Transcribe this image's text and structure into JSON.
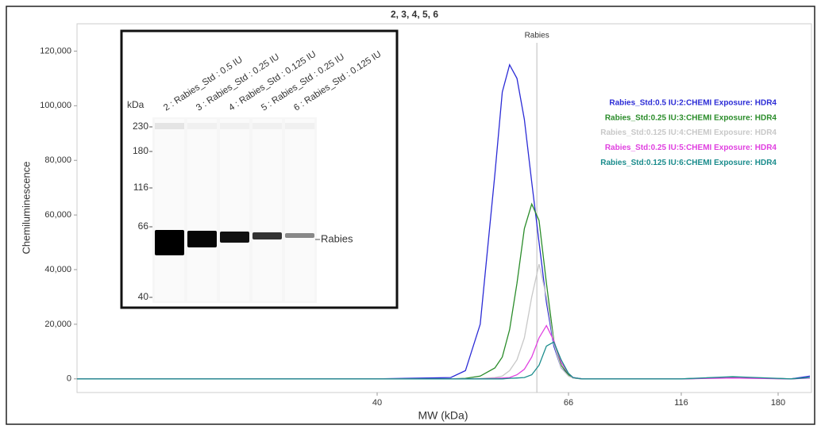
{
  "chart_data": {
    "type": "line",
    "title": "2, 3, 4, 5, 6",
    "xlabel": "MW (kDa)",
    "ylabel": "Chemiluminescence",
    "xlim": [
      10,
      230
    ],
    "xticks": [
      40,
      66,
      116,
      180
    ],
    "ylim": [
      -5000,
      130000
    ],
    "yticks": [
      0,
      {
        "value": 20000,
        "label": "20,000"
      },
      {
        "value": 40000,
        "label": "40,000"
      },
      {
        "value": 60000,
        "label": "60,000"
      },
      {
        "value": 80000,
        "label": "80,000"
      },
      {
        "value": 100000,
        "label": "100,000"
      },
      {
        "value": 120000,
        "label": "120,000"
      }
    ],
    "legend": "top-right",
    "x": [
      10,
      40,
      50,
      52,
      54,
      56,
      57,
      58,
      59,
      60,
      61,
      62,
      63,
      64,
      65,
      66,
      68,
      72,
      116,
      150,
      200,
      230
    ],
    "series": [
      {
        "name": "Rabies_Std:0.5 IU:2:CHEMI Exposure: HDR4",
        "color": "#2b2bd6",
        "values": [
          0,
          0,
          500,
          3000,
          20000,
          75000,
          105000,
          115000,
          110000,
          95000,
          72000,
          50000,
          28000,
          12000,
          4000,
          1500,
          500,
          0,
          0,
          500,
          0,
          1000
        ]
      },
      {
        "name": "Rabies_Std:0.25 IU:3:CHEMI Exposure: HDR4",
        "color": "#2a8c2a",
        "values": [
          0,
          0,
          0,
          200,
          1000,
          4000,
          8000,
          18000,
          35000,
          55000,
          64000,
          58000,
          35000,
          14000,
          5000,
          1500,
          300,
          0,
          0,
          500,
          0,
          500
        ]
      },
      {
        "name": "Rabies_Std:0.125 IU:4:CHEMI Exposure: HDR4",
        "color": "#c8c8c8",
        "values": [
          0,
          0,
          0,
          0,
          200,
          500,
          1000,
          3000,
          7000,
          15000,
          30000,
          42000,
          30000,
          13000,
          4000,
          1000,
          300,
          0,
          0,
          300,
          0,
          300
        ]
      },
      {
        "name": "Rabies_Std:0.25 IU:5:CHEMI Exposure: HDR4",
        "color": "#e040e0",
        "values": [
          0,
          0,
          0,
          0,
          0,
          200,
          300,
          500,
          1500,
          3500,
          8000,
          15000,
          19500,
          14000,
          6000,
          2000,
          500,
          0,
          0,
          300,
          0,
          300
        ]
      },
      {
        "name": "Rabies_Std:0.125 IU:6:CHEMI Exposure: HDR4",
        "color": "#1a8c8c",
        "values": [
          0,
          0,
          0,
          0,
          0,
          0,
          0,
          200,
          300,
          500,
          1500,
          5000,
          12000,
          13500,
          7000,
          2000,
          500,
          0,
          0,
          800,
          0,
          500
        ]
      }
    ],
    "annotations": [
      {
        "label": "Rabies",
        "x": 61.7
      }
    ],
    "inset": {
      "lane_labels": [
        "2 : Rabies_Std : 0.5 IU",
        "3 : Rabies_Std : 0.25 IU",
        "4 : Rabies_Std : 0.125 IU",
        "5 : Rabies_Std : 0.25 IU",
        "6 : Rabies_Std : 0.125 IU"
      ],
      "ladder_label": "kDa",
      "ladder": [
        230,
        180,
        116,
        66,
        40
      ],
      "band_label": "Rabies"
    }
  }
}
